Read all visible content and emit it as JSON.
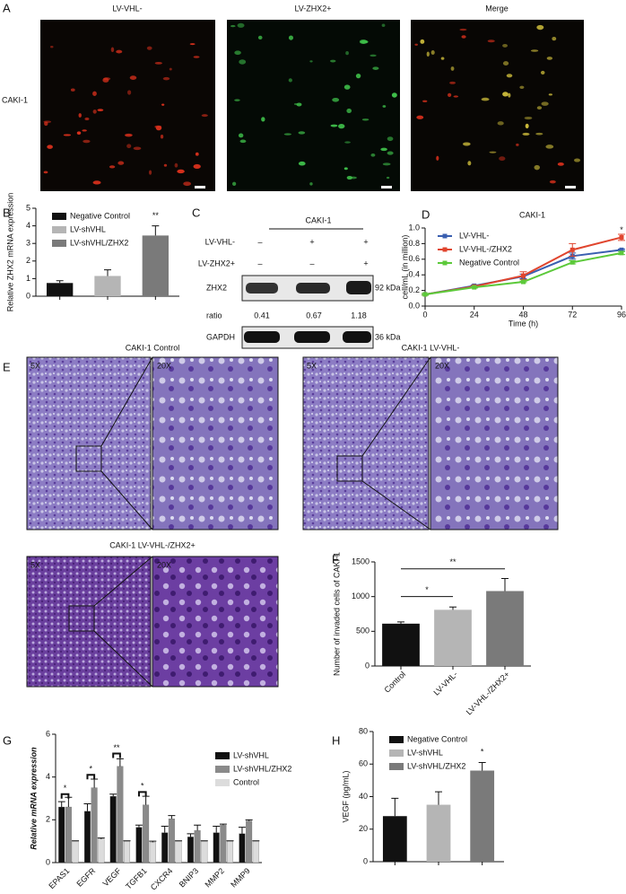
{
  "panel_labels": [
    "A",
    "B",
    "C",
    "D",
    "E",
    "F",
    "G",
    "H"
  ],
  "panel_a": {
    "columns": [
      "LV-VHL-",
      "LV-ZHX2+",
      "Merge"
    ],
    "row": "CAKI-1"
  },
  "panel_c": {
    "title": "CAKI-1",
    "rows": [
      {
        "label": "LV-VHL-",
        "signs": [
          "–",
          "+",
          "+"
        ]
      },
      {
        "label": "LV-ZHX2+",
        "signs": [
          "–",
          "–",
          "+"
        ]
      }
    ],
    "bands": [
      {
        "label": "ZHX2",
        "size": "92 kDa"
      },
      {
        "label": "GAPDH",
        "size": "36 kDa"
      }
    ],
    "ratio_label": "ratio",
    "ratios": [
      0.41,
      0.67,
      1.18
    ]
  },
  "panel_e": {
    "titles": [
      "CAKI-1  Control",
      "CAKI-1 LV-VHL-",
      "CAKI-1 LV-VHL-/ZHX2+"
    ],
    "magnifications": [
      "5X",
      "20X",
      "5X",
      "20X",
      "5X",
      "20X"
    ]
  },
  "chart_data": [
    {
      "type": "bar",
      "ylabel": "Relative ZHX2 mRNA expression",
      "ylim": [
        0,
        5
      ],
      "yticks": [
        0,
        1,
        2,
        3,
        4,
        5
      ],
      "legend": "upper left",
      "series": [
        {
          "name": "Negative Control",
          "color": "#111111",
          "values": [
            0.75
          ],
          "errors": [
            0.13
          ]
        },
        {
          "name": "LV-shVHL",
          "color": "#b5b5b5",
          "values": [
            1.15
          ],
          "errors": [
            0.35
          ]
        },
        {
          "name": "LV-shVHL/ZHX2",
          "color": "#7a7a7a",
          "values": [
            3.45
          ],
          "errors": [
            0.55
          ]
        }
      ],
      "annotations": [
        {
          "text": "**",
          "x": "LV-shVHL/ZHX2",
          "y": 4.25
        }
      ]
    },
    {
      "type": "line",
      "title": "CAKI-1",
      "xlabel": "Time (h)",
      "ylabel": "cell/mL (in million)",
      "x": [
        0,
        24,
        48,
        72,
        96
      ],
      "xlim": [
        0,
        96
      ],
      "xticks": [
        0,
        24,
        48,
        72,
        96
      ],
      "ylim": [
        0,
        1
      ],
      "yticks": [
        {
          "value": 0,
          "label": "0.0"
        },
        0.2,
        0.4,
        0.6,
        0.8,
        {
          "value": 1,
          "label": "1.0"
        }
      ],
      "legend": "upper left",
      "series": [
        {
          "name": "LV-VHL-",
          "color": "#3a5fb0",
          "values": [
            0.15,
            0.26,
            0.38,
            0.64,
            0.72
          ],
          "errors": [
            0.01,
            0.01,
            0.03,
            0.04,
            0.01
          ]
        },
        {
          "name": "LV-VHL-/ZHX2",
          "color": "#e0452e",
          "values": [
            0.15,
            0.25,
            0.39,
            0.72,
            0.88
          ],
          "errors": [
            0.01,
            0.01,
            0.05,
            0.08,
            0.04
          ]
        },
        {
          "name": "Negative Control",
          "color": "#5cc93a",
          "values": [
            0.15,
            0.24,
            0.31,
            0.56,
            0.68
          ],
          "errors": [
            0.01,
            0.01,
            0.01,
            0.02,
            0.02
          ]
        }
      ],
      "annotations": [
        {
          "text": "*",
          "x": 96,
          "y": 0.97
        }
      ]
    },
    {
      "type": "bar",
      "ylabel": "Number of invaded cells of CAKI-1",
      "ylim": [
        0,
        1500
      ],
      "yticks": [
        0,
        500,
        1000,
        1500
      ],
      "categories": [
        "Control",
        "LV-VHL-",
        "LV-VHL-/ZHX2+"
      ],
      "values": [
        610,
        810,
        1080
      ],
      "errors": [
        25,
        40,
        180
      ],
      "colors": [
        "#111111",
        "#b5b5b5",
        "#7a7a7a"
      ],
      "annotations": [
        {
          "text": "*",
          "from": "Control",
          "to": "LV-VHL-",
          "y": 1000
        },
        {
          "text": "**",
          "from": "Control",
          "to": "LV-VHL-/ZHX2+",
          "y": 1400
        }
      ]
    },
    {
      "type": "bar",
      "ylabel": "Relative mRNA expression",
      "ylim": [
        0,
        6
      ],
      "yticks": [
        0,
        2,
        4,
        6
      ],
      "legend": "upper right",
      "categories": [
        "EPAS1",
        "EGFR",
        "VEGF",
        "TGFB1",
        "CXCR4",
        "BNIP3",
        "MMP2",
        "MMP9"
      ],
      "series": [
        {
          "name": "LV-shVHL",
          "color": "#111111",
          "values": [
            2.6,
            2.4,
            3.1,
            1.65,
            1.4,
            1.2,
            1.4,
            1.35
          ],
          "errors": [
            0.25,
            0.35,
            0.1,
            0.1,
            0.3,
            0.15,
            0.3,
            0.3
          ]
        },
        {
          "name": "LV-shVHL/ZHX2",
          "color": "#8a8a8a",
          "values": [
            2.6,
            3.5,
            4.5,
            2.7,
            2.05,
            1.5,
            1.75,
            1.95
          ],
          "errors": [
            0.45,
            0.4,
            0.35,
            0.4,
            0.15,
            0.25,
            0.05,
            0.05
          ]
        },
        {
          "name": "Control",
          "color": "#dcdcdc",
          "values": [
            1.0,
            1.1,
            1.0,
            0.95,
            1.0,
            1.0,
            1.0,
            1.0
          ],
          "errors": [
            0.02,
            0.05,
            0.02,
            0.05,
            0.02,
            0.02,
            0.02,
            0.02
          ]
        }
      ],
      "annotations": [
        {
          "text": "*",
          "x": "EPAS1",
          "y": 3.2
        },
        {
          "text": "*",
          "x": "EGFR",
          "y": 4.1
        },
        {
          "text": "**",
          "x": "VEGF",
          "y": 5.1
        },
        {
          "text": "*",
          "x": "TGFB1",
          "y": 3.3
        }
      ]
    },
    {
      "type": "bar",
      "ylabel": "VEGF (pg/mL)",
      "ylim": [
        0,
        80
      ],
      "yticks": [
        0,
        20,
        40,
        60,
        80
      ],
      "legend": "upper left",
      "series": [
        {
          "name": "Negative Control",
          "color": "#111111",
          "values": [
            28
          ],
          "errors": [
            11
          ]
        },
        {
          "name": "LV-shVHL",
          "color": "#b5b5b5",
          "values": [
            35
          ],
          "errors": [
            8
          ]
        },
        {
          "name": "LV-shVHL/ZHX2",
          "color": "#7a7a7a",
          "values": [
            56
          ],
          "errors": [
            5
          ]
        }
      ],
      "annotations": [
        {
          "text": "*",
          "x": "LV-shVHL/ZHX2",
          "y": 64
        }
      ]
    }
  ]
}
